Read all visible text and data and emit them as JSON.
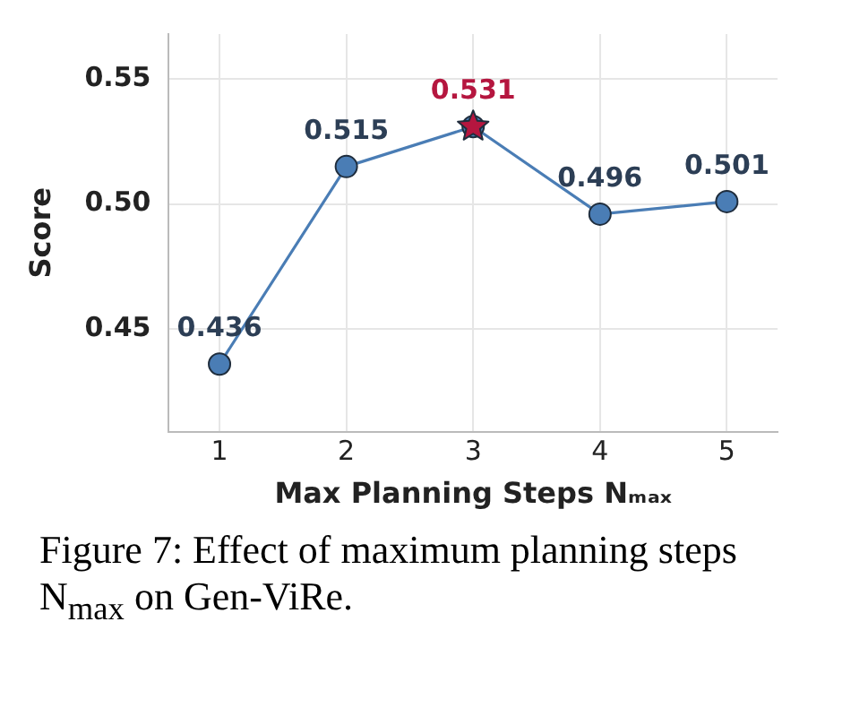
{
  "chart_data": {
    "type": "line",
    "xlabel": "Max Planning Steps Nₘₐₓ",
    "ylabel": "Score",
    "x": [
      1,
      2,
      3,
      4,
      5
    ],
    "xlim": [
      0.6,
      5.4
    ],
    "xticks": [
      1,
      2,
      3,
      4,
      5
    ],
    "ylim": [
      0.409,
      0.568
    ],
    "yticks": [
      0.45,
      {
        "value": 0.5,
        "label": "0.50"
      },
      0.55
    ],
    "grid": true,
    "legend": false,
    "series": [
      {
        "color": "#4a7db5",
        "values": [
          0.436,
          0.515,
          0.531,
          0.496,
          0.501
        ],
        "marker": "circle",
        "value_labels": [
          "0.436",
          "0.515",
          null,
          "0.496",
          "0.501"
        ]
      },
      {
        "type": "scatter",
        "color": "#b5163f",
        "x": [
          3
        ],
        "values": [
          0.531
        ],
        "marker": "star",
        "value_labels": [
          "0.531"
        ]
      }
    ],
    "annotations": [
      "Figure 7: Effect of maximum planning steps N$_{max}$ on Gen-ViRe."
    ]
  }
}
